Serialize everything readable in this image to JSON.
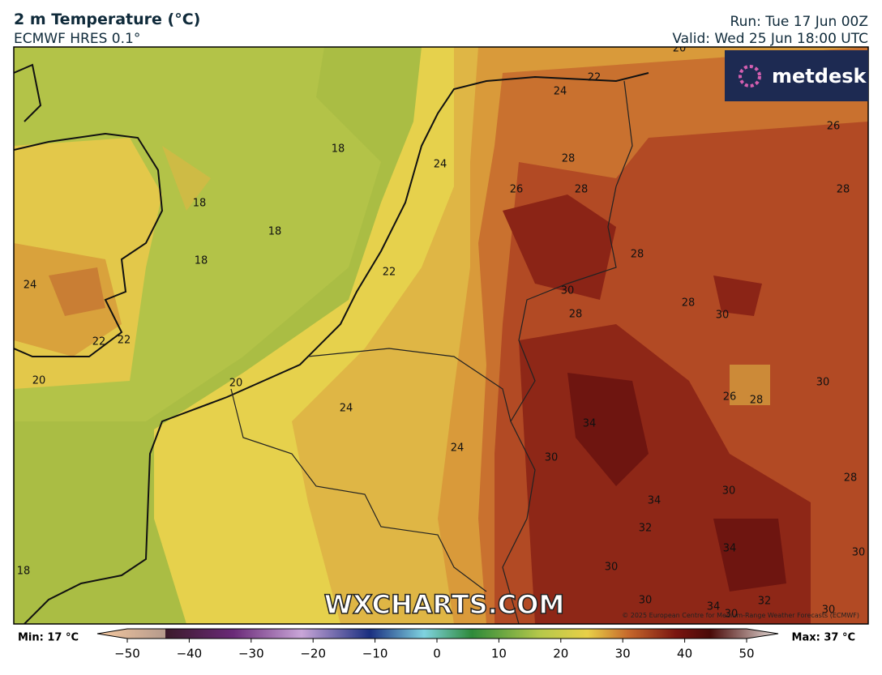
{
  "header": {
    "title": "2 m Temperature (°C)",
    "model": "ECMWF HRES 0.1°",
    "run": "Run: Tue 17 Jun 00Z",
    "valid": "Valid: Wed 25 Jun 18:00 UTC"
  },
  "map": {
    "logo": "metdesk",
    "watermark": "WXCHARTS.COM",
    "copyright": "© 2025 European Centre for Medium-Range Weather Forecasts (ECMWF)",
    "contour_labels": [
      "20",
      "22",
      "24",
      "26",
      "18",
      "28",
      "24",
      "18",
      "26",
      "28",
      "28",
      "18",
      "18",
      "28",
      "22",
      "24",
      "30",
      "28",
      "28",
      "30",
      "22",
      "22",
      "20",
      "20",
      "30",
      "26",
      "28",
      "24",
      "34",
      "24",
      "30",
      "28",
      "30",
      "34",
      "32",
      "34",
      "30",
      "18",
      "30",
      "30",
      "34",
      "32",
      "30",
      "30"
    ]
  },
  "colorbar": {
    "min_label": "Min: 17 °C",
    "max_label": "Max: 37 °C",
    "ticks": [
      {
        "value": -50,
        "label": "−50"
      },
      {
        "value": -40,
        "label": "−40"
      },
      {
        "value": -30,
        "label": "−30"
      },
      {
        "value": -20,
        "label": "−20"
      },
      {
        "value": -10,
        "label": "−10"
      },
      0,
      10,
      20,
      30,
      40,
      50
    ]
  }
}
